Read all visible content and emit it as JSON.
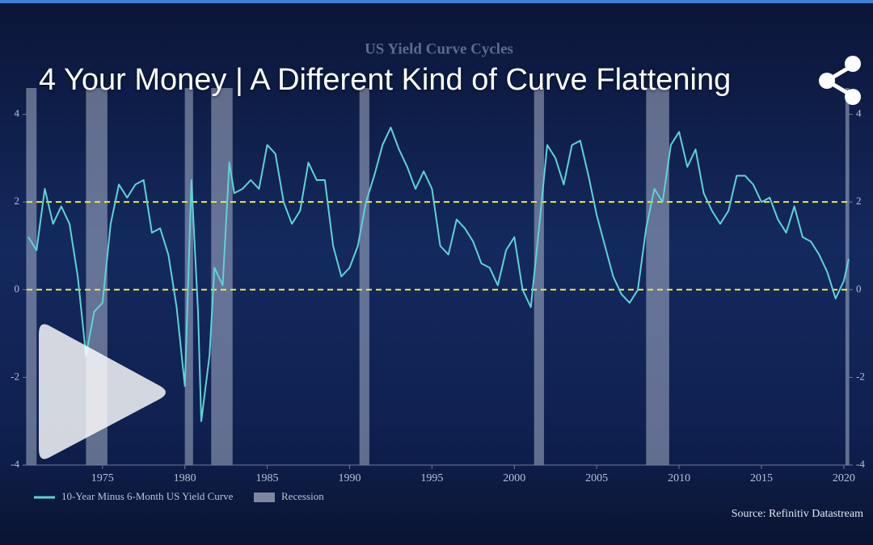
{
  "video": {
    "title": "4 Your Money | A Different Kind of Curve Flattening"
  },
  "chart_data": {
    "type": "line",
    "title": "US Yield Curve Cycles",
    "source": "Source: Refinitiv Datastream",
    "xlim": [
      1970.4,
      2020.3
    ],
    "xticks": [
      1975,
      1980,
      1985,
      1990,
      1995,
      2000,
      2005,
      2010,
      2015,
      2020
    ],
    "ylim": [
      -4,
      4.6
    ],
    "yticks": [
      -4,
      -2,
      0,
      2,
      4
    ],
    "reference_lines": {
      "values": [
        2,
        0
      ],
      "color": "#e8e84a"
    },
    "recession": {
      "name": "Recession",
      "color": "#c9d0e0",
      "spans": [
        [
          1970.0,
          1971.0
        ],
        [
          1974.0,
          1975.3
        ],
        [
          1980.0,
          1980.5
        ],
        [
          1981.6,
          1982.9
        ],
        [
          1990.6,
          1991.2
        ],
        [
          2001.2,
          2001.8
        ],
        [
          2008.0,
          2009.4
        ],
        [
          2020.1,
          2020.3
        ]
      ]
    },
    "x": [
      1970.5,
      1971.0,
      1971.5,
      1972.0,
      1972.5,
      1973.0,
      1973.5,
      1974.0,
      1974.5,
      1975.0,
      1975.5,
      1976.0,
      1976.5,
      1977.0,
      1977.5,
      1978.0,
      1978.5,
      1979.0,
      1979.5,
      1980.0,
      1980.4,
      1980.8,
      1981.0,
      1981.5,
      1981.8,
      1982.3,
      1982.7,
      1983.0,
      1983.5,
      1984.0,
      1984.5,
      1985.0,
      1985.5,
      1986.0,
      1986.5,
      1987.0,
      1987.5,
      1988.0,
      1988.5,
      1989.0,
      1989.5,
      1990.0,
      1990.5,
      1991.0,
      1991.5,
      1992.0,
      1992.5,
      1993.0,
      1993.5,
      1994.0,
      1994.5,
      1995.0,
      1995.5,
      1996.0,
      1996.5,
      1997.0,
      1997.5,
      1998.0,
      1998.5,
      1999.0,
      1999.5,
      2000.0,
      2000.5,
      2001.0,
      2001.5,
      2002.0,
      2002.5,
      2003.0,
      2003.5,
      2004.0,
      2004.5,
      2005.0,
      2005.5,
      2006.0,
      2006.5,
      2007.0,
      2007.5,
      2008.0,
      2008.5,
      2009.0,
      2009.5,
      2010.0,
      2010.5,
      2011.0,
      2011.5,
      2012.0,
      2012.5,
      2013.0,
      2013.5,
      2014.0,
      2014.5,
      2015.0,
      2015.5,
      2016.0,
      2016.5,
      2017.0,
      2017.5,
      2018.0,
      2018.5,
      2019.0,
      2019.5,
      2020.0,
      2020.3
    ],
    "series": [
      {
        "name": "10-Year Minus 6-Month US Yield Curve",
        "color": "#5ed3d6",
        "values": [
          1.2,
          0.9,
          2.3,
          1.5,
          1.9,
          1.5,
          0.3,
          -1.5,
          -0.5,
          -0.3,
          1.5,
          2.4,
          2.1,
          2.4,
          2.5,
          1.3,
          1.4,
          0.8,
          -0.4,
          -2.2,
          2.5,
          -0.5,
          -3.0,
          -1.5,
          0.5,
          0.1,
          2.9,
          2.2,
          2.3,
          2.5,
          2.3,
          3.3,
          3.1,
          2.0,
          1.5,
          1.8,
          2.9,
          2.5,
          2.5,
          1.0,
          0.3,
          0.5,
          1.0,
          2.0,
          2.6,
          3.3,
          3.7,
          3.2,
          2.8,
          2.3,
          2.7,
          2.3,
          1.0,
          0.8,
          1.6,
          1.4,
          1.1,
          0.6,
          0.5,
          0.1,
          0.9,
          1.2,
          0.0,
          -0.4,
          1.4,
          3.3,
          3.0,
          2.4,
          3.3,
          3.4,
          2.6,
          1.7,
          1.0,
          0.3,
          -0.1,
          -0.3,
          0.0,
          1.4,
          2.3,
          2.0,
          3.3,
          3.6,
          2.8,
          3.2,
          2.2,
          1.8,
          1.5,
          1.8,
          2.6,
          2.6,
          2.4,
          2.0,
          2.1,
          1.6,
          1.3,
          1.9,
          1.2,
          1.1,
          0.8,
          0.4,
          -0.2,
          0.2,
          0.7
        ]
      }
    ]
  }
}
